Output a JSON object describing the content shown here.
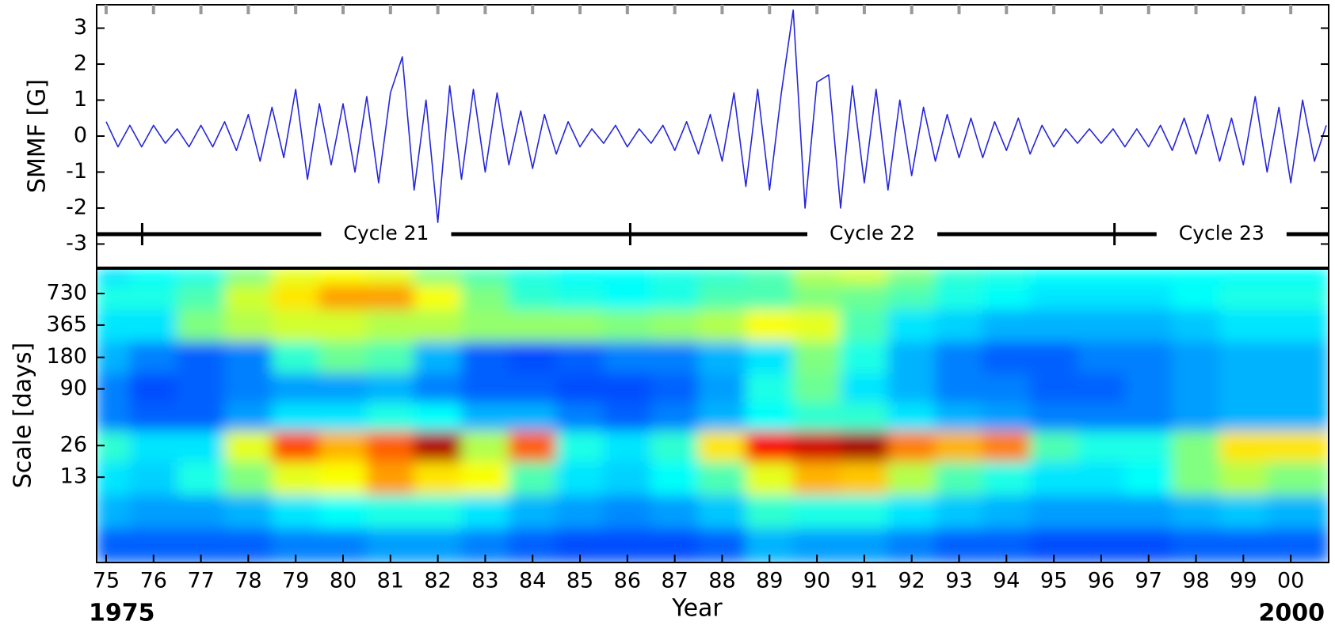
{
  "chart_data": [
    {
      "type": "line",
      "ylabel": "SMMF [G]",
      "x": [
        1975,
        1975.25,
        1975.5,
        1975.75,
        1976,
        1976.25,
        1976.5,
        1976.75,
        1977,
        1977.25,
        1977.5,
        1977.75,
        1978,
        1978.25,
        1978.5,
        1978.75,
        1979,
        1979.25,
        1979.5,
        1979.75,
        1980,
        1980.25,
        1980.5,
        1980.75,
        1981,
        1981.25,
        1981.5,
        1981.75,
        1982,
        1982.25,
        1982.5,
        1982.75,
        1983,
        1983.25,
        1983.5,
        1983.75,
        1984,
        1984.25,
        1984.5,
        1984.75,
        1985,
        1985.25,
        1985.5,
        1985.75,
        1986,
        1986.25,
        1986.5,
        1986.75,
        1987,
        1987.25,
        1987.5,
        1987.75,
        1988,
        1988.25,
        1988.5,
        1988.75,
        1989,
        1989.25,
        1989.5,
        1989.75,
        1990,
        1990.25,
        1990.5,
        1990.75,
        1991,
        1991.25,
        1991.5,
        1991.75,
        1992,
        1992.25,
        1992.5,
        1992.75,
        1993,
        1993.25,
        1993.5,
        1993.75,
        1994,
        1994.25,
        1994.5,
        1994.75,
        1995,
        1995.25,
        1995.5,
        1995.75,
        1996,
        1996.25,
        1996.5,
        1996.75,
        1997,
        1997.25,
        1997.5,
        1997.75,
        1998,
        1998.25,
        1998.5,
        1998.75,
        1999,
        1999.25,
        1999.5,
        1999.75,
        2000,
        2000.25,
        2000.5,
        2000.75
      ],
      "series": [
        {
          "color": "#2626dc",
          "values": [
            0.4,
            -0.3,
            0.3,
            -0.3,
            0.3,
            -0.2,
            0.2,
            -0.3,
            0.3,
            -0.3,
            0.4,
            -0.4,
            0.6,
            -0.7,
            0.8,
            -0.6,
            1.3,
            -1.2,
            0.9,
            -0.8,
            0.9,
            -1.0,
            1.1,
            -1.3,
            1.2,
            2.2,
            -1.5,
            1.0,
            -2.4,
            1.4,
            -1.2,
            1.3,
            -1.0,
            1.2,
            -0.8,
            0.7,
            -0.9,
            0.6,
            -0.5,
            0.4,
            -0.3,
            0.2,
            -0.2,
            0.3,
            -0.3,
            0.2,
            -0.2,
            0.3,
            -0.4,
            0.4,
            -0.5,
            0.6,
            -0.7,
            1.2,
            -1.4,
            1.3,
            -1.5,
            1.2,
            3.5,
            -2.0,
            1.5,
            1.7,
            -2.0,
            1.4,
            -1.3,
            1.3,
            -1.5,
            1.0,
            -1.1,
            0.8,
            -0.7,
            0.6,
            -0.6,
            0.5,
            -0.6,
            0.4,
            -0.4,
            0.5,
            -0.5,
            0.3,
            -0.3,
            0.2,
            -0.2,
            0.2,
            -0.2,
            0.2,
            -0.3,
            0.2,
            -0.3,
            0.3,
            -0.4,
            0.5,
            -0.5,
            0.6,
            -0.7,
            0.5,
            -0.8,
            1.1,
            -1.0,
            0.8,
            -1.3,
            1.0,
            -0.7,
            0.3
          ]
        }
      ],
      "xlim": [
        1974.8,
        2000.8
      ],
      "ylim": [
        -3.65,
        3.65
      ],
      "yticks": [
        -3,
        -2,
        -1,
        0,
        1,
        2,
        3
      ],
      "xticks": [
        1975,
        1976,
        1977,
        1978,
        1979,
        1980,
        1981,
        1982,
        1983,
        1984,
        1985,
        1986,
        1987,
        1988,
        1989,
        1990,
        1991,
        1992,
        1993,
        1994,
        1995,
        1996,
        1997,
        1998,
        1999,
        2000
      ],
      "cycles": {
        "labels": [
          "Cycle 21",
          "Cycle 22",
          "Cycle 23"
        ],
        "starts": [
          1975.76,
          1986.06,
          1996.28
        ]
      }
    },
    {
      "type": "heatmap",
      "xlabel": "Year",
      "ylabel": "Scale [days]",
      "span_labels": [
        "1975",
        "2000"
      ],
      "x": [
        1975,
        1976,
        1977,
        1978,
        1979,
        1980,
        1981,
        1982,
        1983,
        1984,
        1985,
        1986,
        1987,
        1988,
        1989,
        1990,
        1991,
        1992,
        1993,
        1994,
        1995,
        1996,
        1997,
        1998,
        1999,
        2000
      ],
      "y": [
        3,
        6,
        13,
        26,
        50,
        90,
        180,
        365,
        730,
        1100
      ],
      "z": [
        [
          0.22,
          0.22,
          0.22,
          0.22,
          0.25,
          0.25,
          0.28,
          0.28,
          0.25,
          0.22,
          0.2,
          0.2,
          0.2,
          0.22,
          0.3,
          0.28,
          0.28,
          0.25,
          0.22,
          0.22,
          0.2,
          0.2,
          0.2,
          0.22,
          0.22,
          0.22
        ],
        [
          0.3,
          0.28,
          0.28,
          0.3,
          0.35,
          0.38,
          0.4,
          0.4,
          0.35,
          0.3,
          0.28,
          0.26,
          0.28,
          0.32,
          0.42,
          0.4,
          0.4,
          0.35,
          0.32,
          0.3,
          0.28,
          0.28,
          0.28,
          0.3,
          0.32,
          0.3
        ],
        [
          0.35,
          0.33,
          0.4,
          0.5,
          0.6,
          0.62,
          0.72,
          0.65,
          0.62,
          0.45,
          0.35,
          0.33,
          0.38,
          0.45,
          0.6,
          0.7,
          0.68,
          0.55,
          0.45,
          0.4,
          0.35,
          0.35,
          0.38,
          0.5,
          0.55,
          0.5
        ],
        [
          0.42,
          0.35,
          0.35,
          0.6,
          0.8,
          0.7,
          0.78,
          0.95,
          0.55,
          0.78,
          0.4,
          0.35,
          0.42,
          0.65,
          0.88,
          0.92,
          0.96,
          0.75,
          0.7,
          0.75,
          0.45,
          0.4,
          0.4,
          0.5,
          0.65,
          0.65
        ],
        [
          0.25,
          0.22,
          0.22,
          0.28,
          0.35,
          0.35,
          0.4,
          0.38,
          0.3,
          0.3,
          0.25,
          0.22,
          0.25,
          0.3,
          0.38,
          0.42,
          0.42,
          0.35,
          0.3,
          0.28,
          0.25,
          0.25,
          0.25,
          0.28,
          0.3,
          0.3
        ],
        [
          0.25,
          0.2,
          0.22,
          0.25,
          0.28,
          0.28,
          0.3,
          0.25,
          0.22,
          0.22,
          0.2,
          0.2,
          0.22,
          0.28,
          0.4,
          0.48,
          0.35,
          0.3,
          0.25,
          0.25,
          0.22,
          0.22,
          0.25,
          0.28,
          0.3,
          0.3
        ],
        [
          0.3,
          0.25,
          0.22,
          0.25,
          0.42,
          0.48,
          0.45,
          0.3,
          0.22,
          0.2,
          0.22,
          0.25,
          0.25,
          0.3,
          0.35,
          0.5,
          0.4,
          0.3,
          0.25,
          0.22,
          0.22,
          0.25,
          0.25,
          0.28,
          0.3,
          0.3
        ],
        [
          0.35,
          0.35,
          0.5,
          0.55,
          0.58,
          0.58,
          0.55,
          0.55,
          0.52,
          0.52,
          0.52,
          0.5,
          0.52,
          0.55,
          0.62,
          0.6,
          0.45,
          0.35,
          0.33,
          0.3,
          0.3,
          0.3,
          0.3,
          0.32,
          0.35,
          0.35
        ],
        [
          0.4,
          0.4,
          0.45,
          0.58,
          0.65,
          0.72,
          0.72,
          0.62,
          0.5,
          0.42,
          0.4,
          0.38,
          0.4,
          0.45,
          0.45,
          0.5,
          0.48,
          0.45,
          0.4,
          0.38,
          0.35,
          0.35,
          0.35,
          0.38,
          0.4,
          0.4
        ],
        [
          0.35,
          0.38,
          0.4,
          0.5,
          0.6,
          0.62,
          0.6,
          0.5,
          0.45,
          0.4,
          0.38,
          0.38,
          0.4,
          0.42,
          0.45,
          0.55,
          0.58,
          0.5,
          0.42,
          0.4,
          0.38,
          0.38,
          0.38,
          0.38,
          0.38,
          0.38
        ]
      ],
      "zlim": [
        0,
        1
      ],
      "colormap": [
        "#00007f",
        "#0000ff",
        "#0080ff",
        "#00ffff",
        "#80ff80",
        "#ffff00",
        "#ff8000",
        "#ff0000",
        "#7f0000"
      ],
      "xlim": [
        1974.8,
        2000.8
      ],
      "ylim": [
        2,
        1250
      ],
      "log_y": true,
      "yticks": [
        13,
        26,
        90,
        180,
        365,
        730
      ],
      "xticks": [
        {
          "value": 1975,
          "label": "75"
        },
        {
          "value": 1976,
          "label": "76"
        },
        {
          "value": 1977,
          "label": "77"
        },
        {
          "value": 1978,
          "label": "78"
        },
        {
          "value": 1979,
          "label": "79"
        },
        {
          "value": 1980,
          "label": "80"
        },
        {
          "value": 1981,
          "label": "81"
        },
        {
          "value": 1982,
          "label": "82"
        },
        {
          "value": 1983,
          "label": "83"
        },
        {
          "value": 1984,
          "label": "84"
        },
        {
          "value": 1985,
          "label": "85"
        },
        {
          "value": 1986,
          "label": "86"
        },
        {
          "value": 1987,
          "label": "87"
        },
        {
          "value": 1988,
          "label": "88"
        },
        {
          "value": 1989,
          "label": "89"
        },
        {
          "value": 1990,
          "label": "90"
        },
        {
          "value": 1991,
          "label": "91"
        },
        {
          "value": 1992,
          "label": "92"
        },
        {
          "value": 1993,
          "label": "93"
        },
        {
          "value": 1994,
          "label": "94"
        },
        {
          "value": 1995,
          "label": "95"
        },
        {
          "value": 1996,
          "label": "96"
        },
        {
          "value": 1997,
          "label": "97"
        },
        {
          "value": 1998,
          "label": "98"
        },
        {
          "value": 1999,
          "label": "99"
        },
        {
          "value": 2000,
          "label": "00"
        }
      ]
    }
  ]
}
